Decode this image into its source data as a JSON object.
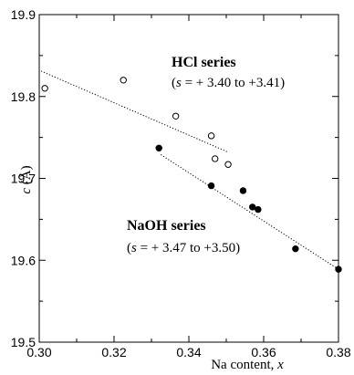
{
  "chart_data": {
    "type": "scatter",
    "xlabel": "Na content, x",
    "xlabel_main": "Na content, ",
    "xlabel_var": "x",
    "ylabel": "c (Å)",
    "ylabel_var": "c",
    "ylabel_unit": " (Å)",
    "xlim": [
      0.3,
      0.38
    ],
    "ylim": [
      19.5,
      19.9
    ],
    "x_ticks": [
      0.3,
      0.32,
      0.34,
      0.36,
      0.38
    ],
    "x_tick_labels": [
      "0.30",
      "0.32",
      "0.34",
      "0.36",
      "0.38"
    ],
    "y_ticks": [
      19.5,
      19.6,
      19.7,
      19.8,
      19.9
    ],
    "y_tick_labels": [
      "19.5",
      "19.6",
      "19.7",
      "19.8",
      "19.9"
    ],
    "grid": false,
    "series": [
      {
        "name": "HCl series",
        "marker": "open-circle",
        "color": "#000000",
        "annotation": {
          "title": "HCl series",
          "sub_open": "(",
          "sub_var": "s",
          "sub_rest": " = + 3.40 to +3.41)"
        },
        "points": [
          {
            "x": 0.3015,
            "y": 19.81
          },
          {
            "x": 0.3225,
            "y": 19.82
          },
          {
            "x": 0.3365,
            "y": 19.776
          },
          {
            "x": 0.346,
            "y": 19.752
          },
          {
            "x": 0.347,
            "y": 19.724
          },
          {
            "x": 0.3505,
            "y": 19.717
          }
        ],
        "trendline": [
          {
            "x": 0.3005,
            "y": 19.831
          },
          {
            "x": 0.3505,
            "y": 19.732
          }
        ]
      },
      {
        "name": "NaOH series",
        "marker": "filled-circle",
        "color": "#000000",
        "annotation": {
          "title": "NaOH series",
          "sub_open": "(",
          "sub_var": "s",
          "sub_rest": " = + 3.47 to +3.50)"
        },
        "points": [
          {
            "x": 0.332,
            "y": 19.737
          },
          {
            "x": 0.346,
            "y": 19.691
          },
          {
            "x": 0.3545,
            "y": 19.685
          },
          {
            "x": 0.357,
            "y": 19.665
          },
          {
            "x": 0.3585,
            "y": 19.662
          },
          {
            "x": 0.3685,
            "y": 19.614
          },
          {
            "x": 0.38,
            "y": 19.589
          }
        ],
        "trendline": [
          {
            "x": 0.3325,
            "y": 19.729
          },
          {
            "x": 0.38,
            "y": 19.589
          }
        ]
      }
    ]
  }
}
